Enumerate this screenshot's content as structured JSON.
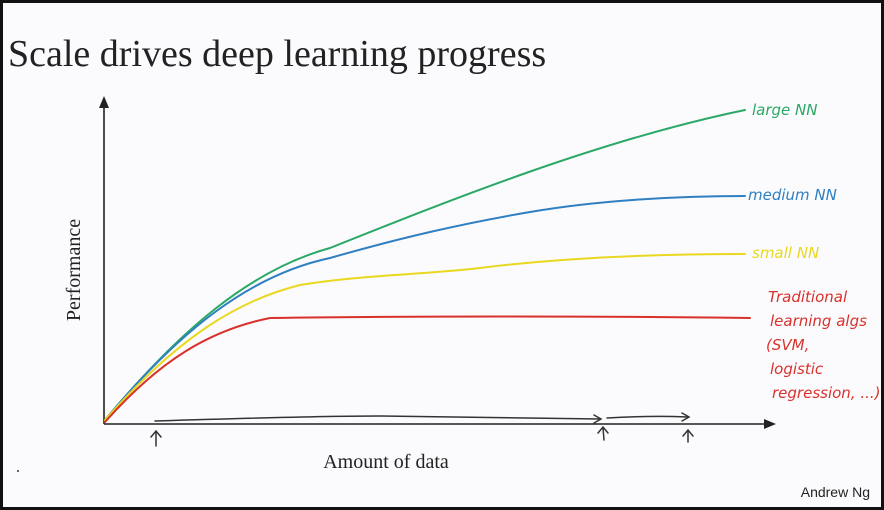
{
  "header": {
    "title": "Scale drives deep learning progress"
  },
  "axes": {
    "y_label": "Performance",
    "x_label": "Amount of data"
  },
  "curves": [
    {
      "label_lines": [
        "large NN"
      ],
      "color": "#2aa866"
    },
    {
      "label_lines": [
        "medium NN"
      ],
      "color": "#2f7fc1"
    },
    {
      "label_lines": [
        "small NN"
      ],
      "color": "#e9d81f"
    },
    {
      "label_lines": [
        "Traditional",
        "learning algs",
        "(SVM,",
        "logistic",
        "regression, ...)"
      ],
      "color": "#d9312b"
    }
  ],
  "footer": {
    "author": "Andrew Ng"
  }
}
